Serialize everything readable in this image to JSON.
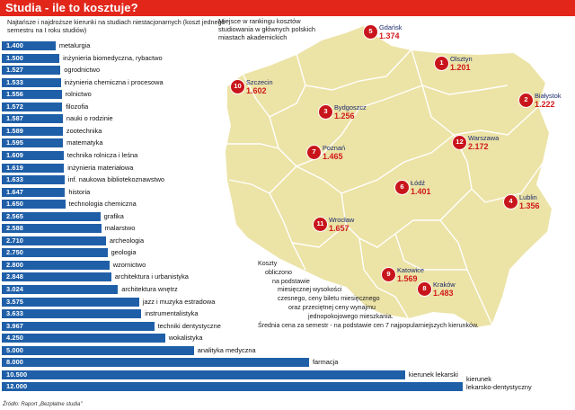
{
  "header": {
    "title": "Studia - ile to kosztuje?",
    "subtitle": "Najtańsze i najdroższe kierunki na studiach niestacjonarnych (koszt jednego semestru na I roku studiów)"
  },
  "map_legend": "Miejsce w rankingu kosztów studiowania w głównych polskich miastach akademickich",
  "note": {
    "lines": [
      "Koszty",
      "obliczono",
      "na podstawie",
      "miesięcznej wysokości",
      "czesnego, ceny biletu miesięcznego",
      "oraz przeciętnej ceny wynajmu",
      "jednopokojowego mieszkania.",
      "Średnia cena za semestr - na podstawie cen 7 najpopularniejszych kierunków."
    ]
  },
  "source": "Źródło: Raport „Bezpłatne studia\"",
  "colors": {
    "bar": "#1f5fa8",
    "title_bg": "#e2261a",
    "map_fill": "#ece3a6",
    "map_border": "#ffffff",
    "circle": "#c8151b",
    "city_value": "#d11b1b"
  },
  "chart_data": [
    {
      "type": "bar",
      "orientation": "horizontal",
      "title": "Najtańsze i najdroższe kierunki na studiach niestacjonarnych (koszt jednego semestru na I roku studiów)",
      "unit": "zł",
      "categories": [
        "metalurgia",
        "inżynieria biomedyczna, rybactwo",
        "ogrodnictwo",
        "inżynieria chemiczna i procesowa",
        "rolnictwo",
        "filozofia",
        "nauki o rodzinie",
        "zootechnika",
        "matematyka",
        "technika rolnicza i leśna",
        "inżynieria materiałowa",
        "inf. naukowa bibliotekoznawstwo",
        "historia",
        "technologia chemiczna",
        "grafika",
        "malarstwo",
        "archeologia",
        "geologia",
        "wzornictwo",
        "architektura i urbanistyka",
        "architektura wnętrz",
        "jazz i muzyka estradowa",
        "instrumentalistyka",
        "techniki dentystyczne",
        "wokalistyka",
        "analityka medyczna",
        "farmacja",
        "kierunek lekarski",
        "kierunek lekarsko-dentystyczny"
      ],
      "values": [
        1400,
        1500,
        1527,
        1533,
        1556,
        1572,
        1587,
        1589,
        1595,
        1609,
        1619,
        1633,
        1647,
        1650,
        2565,
        2588,
        2710,
        2750,
        2800,
        2848,
        3024,
        3575,
        3633,
        3967,
        4250,
        5000,
        8000,
        10500,
        12000
      ],
      "value_labels": [
        "1.400",
        "1.500",
        "1.527",
        "1.533",
        "1.556",
        "1.572",
        "1.587",
        "1.589",
        "1.595",
        "1.609",
        "1.619",
        "1.633",
        "1.647",
        "1.650",
        "2.565",
        "2.588",
        "2.710",
        "2.750",
        "2.800",
        "2.848",
        "3.024",
        "3.575",
        "3.633",
        "3.967",
        "4.250",
        "5.000",
        "8.000",
        "10.500",
        "12.000"
      ],
      "label_lines": {
        "kierunek lekarsko-dentystyczny": [
          "kierunek",
          "lekarsko-dentystyczny"
        ]
      }
    },
    {
      "type": "map",
      "title": "Miejsce w rankingu kosztów studiowania w głównych polskich miastach akademickich",
      "unit": "zł",
      "cities": [
        {
          "rank": "1",
          "name": "Olsztyn",
          "value": 1201,
          "value_label": "1.201"
        },
        {
          "rank": "2",
          "name": "Białystok",
          "value": 1222,
          "value_label": "1.222"
        },
        {
          "rank": "3",
          "name": "Bydgoszcz",
          "value": 1256,
          "value_label": "1.256"
        },
        {
          "rank": "4",
          "name": "Lublin",
          "value": 1356,
          "value_label": "1.356"
        },
        {
          "rank": "5",
          "name": "Gdańsk",
          "value": 1374,
          "value_label": "1.374"
        },
        {
          "rank": "6",
          "name": "Łódź",
          "value": 1401,
          "value_label": "1.401"
        },
        {
          "rank": "7",
          "name": "Poznań",
          "value": 1465,
          "value_label": "1.465"
        },
        {
          "rank": "8",
          "name": "Kraków",
          "value": 1483,
          "value_label": "1.483"
        },
        {
          "rank": "9",
          "name": "Katowice",
          "value": 1569,
          "value_label": "1.569"
        },
        {
          "rank": "10",
          "name": "Szczecin",
          "value": 1602,
          "value_label": "1.602"
        },
        {
          "rank": "11",
          "name": "Wrocław",
          "value": 1657,
          "value_label": "1.657"
        },
        {
          "rank": "12",
          "name": "Warszawa",
          "value": 2172,
          "value_label": "2.172"
        }
      ]
    }
  ]
}
